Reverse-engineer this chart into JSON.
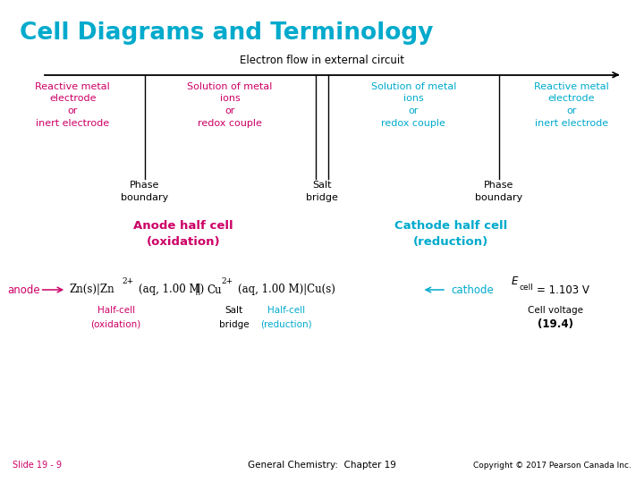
{
  "title": "Cell Diagrams and Terminology",
  "title_color": "#00AACC",
  "bg_color": "#FFFFFF",
  "footer_left": "Slide 19 - 9",
  "footer_center": "General Chemistry:  Chapter 19",
  "footer_right": "Copyright © 2017 Pearson Canada Inc.",
  "magenta": "#CC0066",
  "cyan": "#00AACC",
  "black": "#000000",
  "col1_text": "Reactive metal\nelectrode\nor\ninert electrode",
  "col2_text": "Solution of metal\nions\nor\nredox couple",
  "col3_text": "Solution of metal\nions\nor\nredox couple",
  "col4_text": "Reactive metal\nelectrode\nor\ninert electrode"
}
